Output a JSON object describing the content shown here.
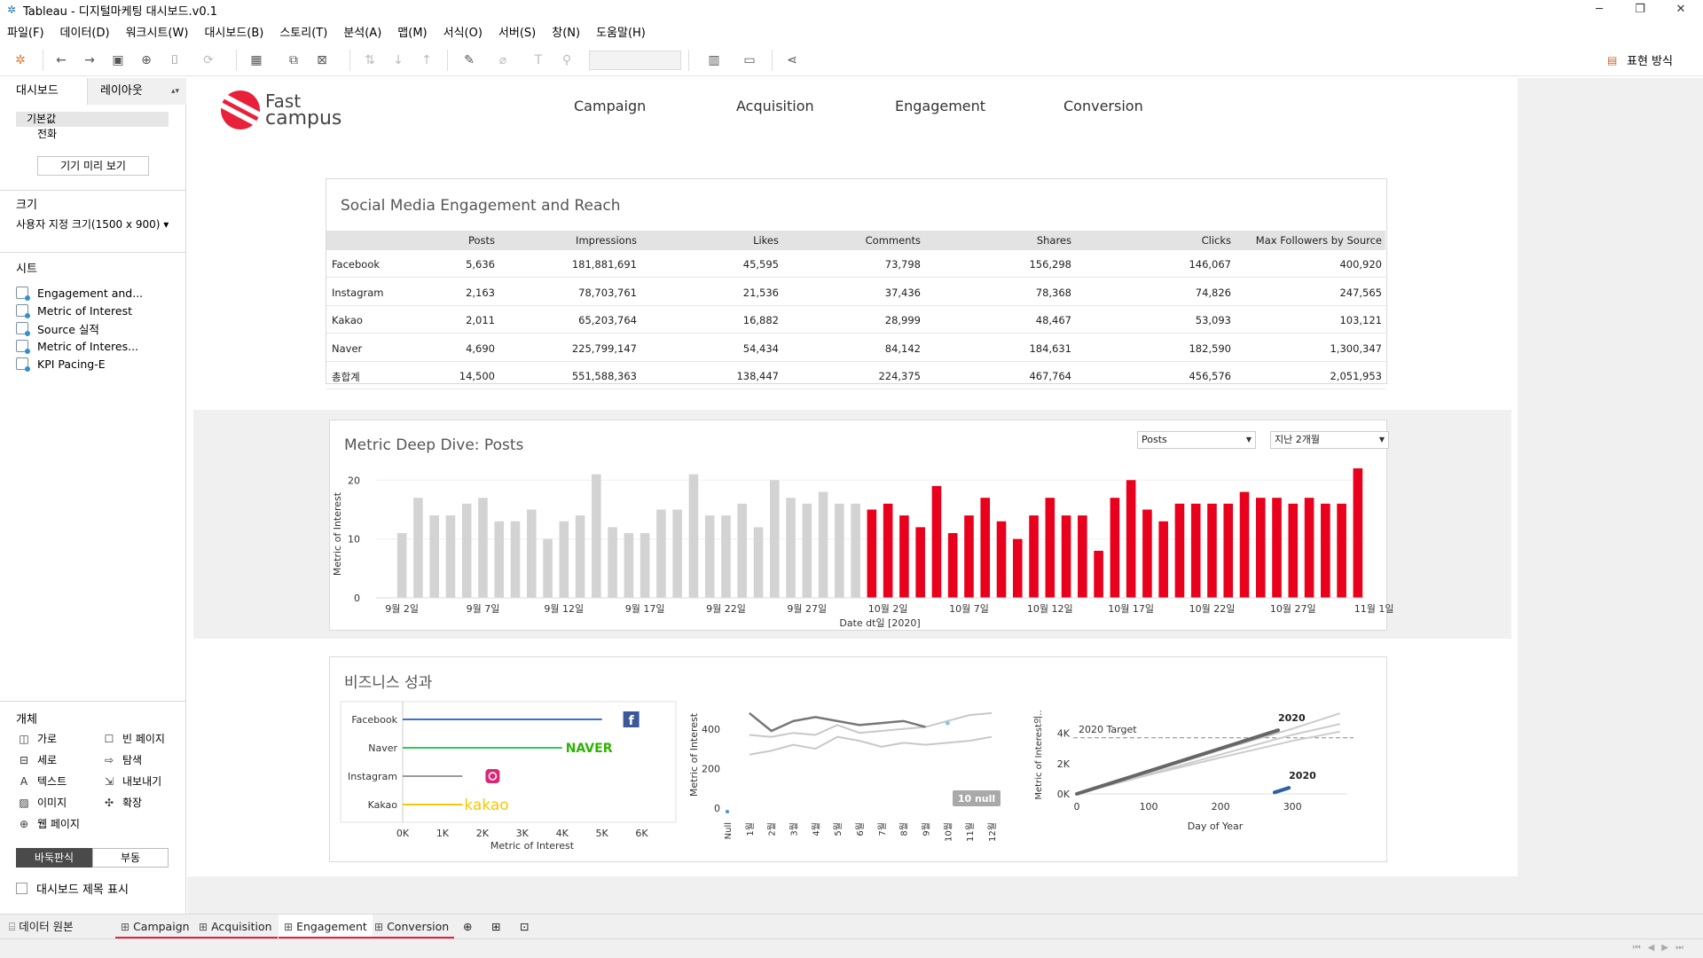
{
  "window": {
    "title": "Tableau - 디지털마케팅 대시보드.v0.1",
    "minimize": "─",
    "restore": "❐",
    "close": "✕"
  },
  "menu": [
    "파일(F)",
    "데이터(D)",
    "워크시트(W)",
    "대시보드(B)",
    "스토리(T)",
    "분석(A)",
    "맵(M)",
    "서식(O)",
    "서버(S)",
    "창(N)",
    "도움말(H)"
  ],
  "toolbar": {
    "show_me": "표현 방식"
  },
  "left_panel": {
    "tabs": [
      "대시보드",
      "레이아웃"
    ],
    "devices": [
      "기본값",
      "전화"
    ],
    "device_preview": "기기 미리 보기",
    "size_heading": "크기",
    "size_value": "사용자 지정 크기(1500 x 900) ▾",
    "sheets_heading": "시트",
    "sheets": [
      "Engagement and...",
      "Metric of Interest",
      "Source 실적",
      "Metric of Interes...",
      "KPI Pacing-E"
    ],
    "objects_heading": "개체",
    "objects": [
      "가로",
      "빈 페이지",
      "세로",
      "탐색",
      "텍스트",
      "내보내기",
      "이미지",
      "확장",
      "웹 페이지"
    ],
    "tiled": "바둑판식",
    "floating": "부동",
    "show_title": "대시보드 제목 표시"
  },
  "dashboard": {
    "logo_line1": "Fast",
    "logo_line2": "campus",
    "nav": [
      "Campaign",
      "Acquisition",
      "Engagement",
      "Conversion"
    ],
    "table": {
      "title": "Social Media Engagement and Reach",
      "columns": [
        "Posts",
        "Impressions",
        "Likes",
        "Comments",
        "Shares",
        "Clicks",
        "Max Followers by Source"
      ],
      "rows": [
        [
          "Facebook",
          "5,636",
          "181,881,691",
          "45,595",
          "73,798",
          "156,298",
          "146,067",
          "400,920"
        ],
        [
          "Instagram",
          "2,163",
          "78,703,761",
          "21,536",
          "37,436",
          "78,368",
          "74,826",
          "247,565"
        ],
        [
          "Kakao",
          "2,011",
          "65,203,764",
          "16,882",
          "28,999",
          "48,467",
          "53,093",
          "103,121"
        ],
        [
          "Naver",
          "4,690",
          "225,799,147",
          "54,434",
          "84,142",
          "184,631",
          "182,590",
          "1,300,347"
        ],
        [
          "총합계",
          "14,500",
          "551,588,363",
          "138,447",
          "224,375",
          "467,764",
          "456,576",
          "2,051,953"
        ]
      ]
    },
    "deep_dive": {
      "title": "Metric Deep Dive: Posts",
      "metric_select": "Posts",
      "period_select": "지난 2개월"
    },
    "business": {
      "title": "비즈니스 성과"
    }
  },
  "chart_data": [
    {
      "type": "bar",
      "title": "Metric Deep Dive: Posts",
      "xlabel": "Date dt일 [2020]",
      "ylabel": "Metric of Interest",
      "ylim": [
        0,
        22
      ],
      "yticks": [
        "0",
        "10",
        "20"
      ],
      "xticks": [
        "9월 2일",
        "9월 7일",
        "9월 12일",
        "9월 17일",
        "9월 22일",
        "9월 27일",
        "10월 2일",
        "10월 7일",
        "10월 12일",
        "10월 17일",
        "10월 22일",
        "10월 27일",
        "11월 1일"
      ],
      "series": [
        {
          "color": "#d3d3d3",
          "values": [
            11,
            17,
            14,
            14,
            16,
            17,
            13,
            13,
            15,
            10,
            13,
            14,
            21,
            12,
            11,
            11,
            15,
            15,
            21,
            14,
            14,
            16,
            12,
            20,
            17,
            16,
            18,
            16,
            16
          ]
        },
        {
          "color": "#e8001c",
          "values": [
            15,
            16,
            14,
            12,
            19,
            11,
            14,
            17,
            13,
            10,
            14,
            17,
            14,
            14,
            8,
            17,
            20,
            15,
            13,
            16,
            16,
            16,
            16,
            18,
            17,
            17,
            16,
            17,
            16,
            16,
            22
          ]
        }
      ]
    },
    {
      "type": "bar",
      "orientation": "horizontal",
      "xlabel": "Metric of Interest",
      "xticks": [
        "0K",
        "1K",
        "2K",
        "3K",
        "4K",
        "5K",
        "6K"
      ],
      "xlim": [
        0,
        6500
      ],
      "categories": [
        "Facebook",
        "Naver",
        "Instagram",
        "Kakao"
      ],
      "values": [
        5000,
        4000,
        1500,
        1500
      ],
      "colors": [
        "#3b6fd4",
        "#2fc85a",
        "#9a9a9a",
        "#f5c800"
      ],
      "brand_labels": [
        "f",
        "NAVER",
        "instagram",
        "kakao"
      ]
    },
    {
      "type": "line",
      "ylabel": "Metric of Interest",
      "yticks": [
        "0",
        "200",
        "400"
      ],
      "ylim": [
        0,
        520
      ],
      "xticks": [
        "Null",
        "1월",
        "2월",
        "3월",
        "4월",
        "5월",
        "6월",
        "7월",
        "8월",
        "9월",
        "10월",
        "11월",
        "12월"
      ],
      "series": [
        {
          "color": "#777777",
          "values": [
            480,
            390,
            440,
            460,
            440,
            420,
            430,
            440,
            410
          ]
        },
        {
          "color": "#c8c8c8",
          "values": [
            370,
            360,
            380,
            370,
            420,
            380,
            390,
            400,
            410,
            440,
            470,
            480
          ]
        },
        {
          "color": "#c8c8c8",
          "values": [
            270,
            290,
            320,
            300,
            360,
            340,
            310,
            330,
            320,
            330,
            340,
            360
          ]
        }
      ],
      "null_badge": "10 null"
    },
    {
      "type": "line",
      "xlabel": "Day of Year",
      "ylabel": "Metric of Interest의..",
      "xticks": [
        "0",
        "100",
        "200",
        "300"
      ],
      "yticks": [
        "0K",
        "2K",
        "4K"
      ],
      "xlim": [
        0,
        375
      ],
      "ylim": [
        0,
        5500
      ],
      "target_label": "2020 Target",
      "target_value": 3700,
      "series": [
        {
          "name": "2020",
          "color": "#666666",
          "x": [
            0,
            100,
            200,
            280
          ],
          "y": [
            0,
            1500,
            3000,
            4200
          ]
        },
        {
          "name": "2020",
          "color": "#2e5fa3",
          "x": [
            275,
            295
          ],
          "y": [
            100,
            400
          ]
        },
        {
          "color": "#cccccc",
          "x": [
            0,
            100,
            200,
            300,
            365
          ],
          "y": [
            0,
            1400,
            2900,
            4300,
            5300
          ]
        },
        {
          "color": "#cccccc",
          "x": [
            0,
            100,
            200,
            300,
            365
          ],
          "y": [
            0,
            1300,
            2600,
            3900,
            4600
          ]
        },
        {
          "color": "#cccccc",
          "x": [
            0,
            100,
            200,
            300,
            365
          ],
          "y": [
            0,
            1250,
            2400,
            3500,
            4100
          ]
        }
      ]
    }
  ],
  "bottom_tabs": {
    "datasource": "데이터 원본",
    "sheets": [
      "Campaign",
      "Acquisition",
      "Engagement",
      "Conversion"
    ]
  },
  "colors": {
    "accent": "#e8203a",
    "bar_grey": "#d3d3d3",
    "bar_red": "#e8001c"
  }
}
